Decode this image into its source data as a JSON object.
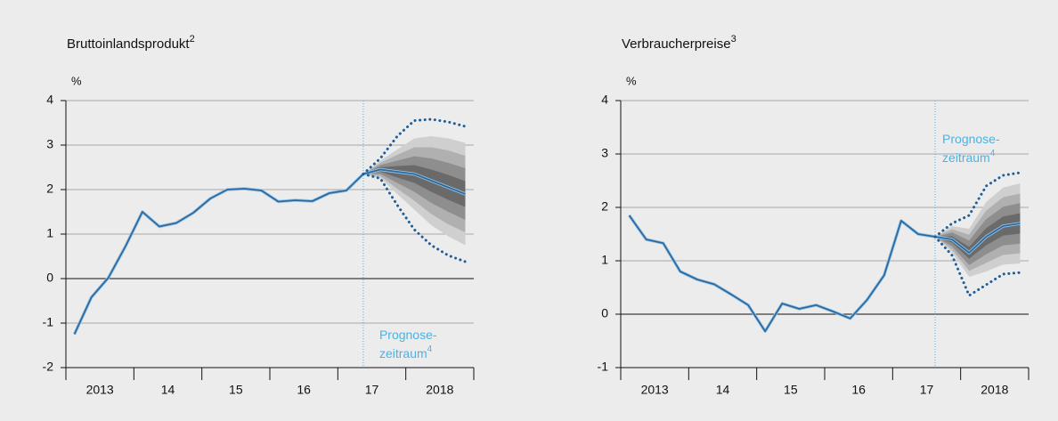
{
  "chart_data": [
    {
      "type": "line",
      "title": "Bruttoinlandsprodukt",
      "title_footnote": "2",
      "y_label": "%",
      "x": [
        2013.125,
        2013.375,
        2013.625,
        2013.875,
        2014.125,
        2014.375,
        2014.625,
        2014.875,
        2015.125,
        2015.375,
        2015.625,
        2015.875,
        2016.125,
        2016.375,
        2016.625,
        2016.875,
        2017.125,
        2017.375,
        2017.625,
        2017.875,
        2018.125,
        2018.375,
        2018.625,
        2018.875
      ],
      "xlim": [
        2013,
        2019
      ],
      "xticks": [
        2013,
        2014,
        2015,
        2016,
        2017,
        2018,
        2019
      ],
      "xtick_labels": [
        {
          "value": 2013.5,
          "label": "2013"
        },
        {
          "value": 2014.5,
          "label": "14"
        },
        {
          "value": 2015.5,
          "label": "15"
        },
        {
          "value": 2016.5,
          "label": "16"
        },
        {
          "value": 2017.5,
          "label": "17"
        },
        {
          "value": 2018.5,
          "label": "2018"
        }
      ],
      "ylim": [
        -2,
        4
      ],
      "yticks": [
        -2,
        -1,
        0,
        1,
        2,
        3,
        4
      ],
      "grid": true,
      "forecast_start": 2017.375,
      "annotation": [
        "Prognose-",
        "zeitraum"
      ],
      "annotation_footnote": "4",
      "annotation_position": "bottom",
      "forecast_color": "#4ab2e4",
      "bands": [
        {
          "color": "#cfcfcf",
          "upper": [
            null,
            null,
            null,
            null,
            null,
            null,
            null,
            null,
            null,
            null,
            null,
            null,
            null,
            null,
            null,
            null,
            null,
            2.35,
            2.65,
            2.9,
            3.15,
            3.2,
            3.15,
            3.05
          ],
          "lower": [
            null,
            null,
            null,
            null,
            null,
            null,
            null,
            null,
            null,
            null,
            null,
            null,
            null,
            null,
            null,
            null,
            null,
            2.35,
            2.25,
            1.9,
            1.55,
            1.2,
            0.95,
            0.75
          ]
        },
        {
          "color": "#b0b0b0",
          "upper": [
            null,
            null,
            null,
            null,
            null,
            null,
            null,
            null,
            null,
            null,
            null,
            null,
            null,
            null,
            null,
            null,
            null,
            2.35,
            2.6,
            2.78,
            2.95,
            2.95,
            2.88,
            2.76
          ],
          "lower": [
            null,
            null,
            null,
            null,
            null,
            null,
            null,
            null,
            null,
            null,
            null,
            null,
            null,
            null,
            null,
            null,
            null,
            2.35,
            2.3,
            2.02,
            1.75,
            1.45,
            1.22,
            1.04
          ]
        },
        {
          "color": "#8e8e8e",
          "upper": [
            null,
            null,
            null,
            null,
            null,
            null,
            null,
            null,
            null,
            null,
            null,
            null,
            null,
            null,
            null,
            null,
            null,
            2.35,
            2.55,
            2.65,
            2.75,
            2.7,
            2.6,
            2.48
          ],
          "lower": [
            null,
            null,
            null,
            null,
            null,
            null,
            null,
            null,
            null,
            null,
            null,
            null,
            null,
            null,
            null,
            null,
            null,
            2.35,
            2.35,
            2.15,
            1.95,
            1.7,
            1.5,
            1.32
          ]
        },
        {
          "color": "#6a6a6a",
          "upper": [
            null,
            null,
            null,
            null,
            null,
            null,
            null,
            null,
            null,
            null,
            null,
            null,
            null,
            null,
            null,
            null,
            null,
            2.35,
            2.5,
            2.53,
            2.55,
            2.45,
            2.33,
            2.19
          ],
          "lower": [
            null,
            null,
            null,
            null,
            null,
            null,
            null,
            null,
            null,
            null,
            null,
            null,
            null,
            null,
            null,
            null,
            null,
            2.35,
            2.4,
            2.27,
            2.15,
            1.95,
            1.77,
            1.61
          ]
        }
      ],
      "series": [
        {
          "color": "#2a6aa3",
          "style": "solid",
          "values": [
            -1.25,
            -0.42,
            0.02,
            0.72,
            1.5,
            1.17,
            1.25,
            1.48,
            1.8,
            2.0,
            2.02,
            1.98,
            1.73,
            1.76,
            1.74,
            1.92,
            1.98,
            2.35,
            null,
            null,
            null,
            null,
            null,
            null
          ]
        },
        {
          "color": "#2a6aa3",
          "style": "solid",
          "values": [
            null,
            null,
            null,
            null,
            null,
            null,
            null,
            null,
            null,
            null,
            null,
            null,
            null,
            null,
            null,
            null,
            null,
            2.35,
            2.45,
            2.4,
            2.35,
            2.2,
            2.05,
            1.9
          ]
        },
        {
          "color": "#1f5e99",
          "style": "dotted",
          "values": [
            null,
            null,
            null,
            null,
            null,
            null,
            null,
            null,
            null,
            null,
            null,
            null,
            null,
            null,
            null,
            null,
            null,
            2.35,
            2.7,
            3.2,
            3.55,
            3.58,
            3.52,
            3.42
          ]
        },
        {
          "color": "#1f5e99",
          "style": "dotted",
          "values": [
            null,
            null,
            null,
            null,
            null,
            null,
            null,
            null,
            null,
            null,
            null,
            null,
            null,
            null,
            null,
            null,
            null,
            2.35,
            2.25,
            1.65,
            1.1,
            0.75,
            0.52,
            0.38
          ]
        }
      ]
    },
    {
      "type": "line",
      "title": "Verbraucherpreise",
      "title_footnote": "3",
      "y_label": "%",
      "x": [
        2013.125,
        2013.375,
        2013.625,
        2013.875,
        2014.125,
        2014.375,
        2014.625,
        2014.875,
        2015.125,
        2015.375,
        2015.625,
        2015.875,
        2016.125,
        2016.375,
        2016.625,
        2016.875,
        2017.125,
        2017.375,
        2017.625,
        2017.875,
        2018.125,
        2018.375,
        2018.625,
        2018.875
      ],
      "xlim": [
        2013,
        2019
      ],
      "xticks": [
        2013,
        2014,
        2015,
        2016,
        2017,
        2018,
        2019
      ],
      "xtick_labels": [
        {
          "value": 2013.5,
          "label": "2013"
        },
        {
          "value": 2014.5,
          "label": "14"
        },
        {
          "value": 2015.5,
          "label": "15"
        },
        {
          "value": 2016.5,
          "label": "16"
        },
        {
          "value": 2017.5,
          "label": "17"
        },
        {
          "value": 2018.5,
          "label": "2018"
        }
      ],
      "ylim": [
        -1,
        4
      ],
      "yticks": [
        -1,
        0,
        1,
        2,
        3,
        4
      ],
      "grid": true,
      "forecast_start": 2017.625,
      "annotation": [
        "Prognose-",
        "zeitraum"
      ],
      "annotation_footnote": "4",
      "annotation_position": "top",
      "forecast_color": "#4ab2e4",
      "bands": [
        {
          "color": "#cfcfcf",
          "upper": [
            null,
            null,
            null,
            null,
            null,
            null,
            null,
            null,
            null,
            null,
            null,
            null,
            null,
            null,
            null,
            null,
            null,
            null,
            1.45,
            1.65,
            1.6,
            2.1,
            2.37,
            2.45
          ],
          "lower": [
            null,
            null,
            null,
            null,
            null,
            null,
            null,
            null,
            null,
            null,
            null,
            null,
            null,
            null,
            null,
            null,
            null,
            null,
            1.45,
            1.15,
            0.7,
            0.8,
            0.93,
            0.95
          ]
        },
        {
          "color": "#b0b0b0",
          "upper": [
            null,
            null,
            null,
            null,
            null,
            null,
            null,
            null,
            null,
            null,
            null,
            null,
            null,
            null,
            null,
            null,
            null,
            null,
            1.45,
            1.59,
            1.49,
            1.94,
            2.19,
            2.26
          ],
          "lower": [
            null,
            null,
            null,
            null,
            null,
            null,
            null,
            null,
            null,
            null,
            null,
            null,
            null,
            null,
            null,
            null,
            null,
            null,
            1.45,
            1.21,
            0.81,
            0.96,
            1.11,
            1.14
          ]
        },
        {
          "color": "#8e8e8e",
          "upper": [
            null,
            null,
            null,
            null,
            null,
            null,
            null,
            null,
            null,
            null,
            null,
            null,
            null,
            null,
            null,
            null,
            null,
            null,
            1.45,
            1.53,
            1.38,
            1.78,
            2.01,
            2.08
          ],
          "lower": [
            null,
            null,
            null,
            null,
            null,
            null,
            null,
            null,
            null,
            null,
            null,
            null,
            null,
            null,
            null,
            null,
            null,
            null,
            1.45,
            1.27,
            0.92,
            1.12,
            1.29,
            1.32
          ]
        },
        {
          "color": "#6a6a6a",
          "upper": [
            null,
            null,
            null,
            null,
            null,
            null,
            null,
            null,
            null,
            null,
            null,
            null,
            null,
            null,
            null,
            null,
            null,
            null,
            1.45,
            1.46,
            1.26,
            1.61,
            1.83,
            1.89
          ],
          "lower": [
            null,
            null,
            null,
            null,
            null,
            null,
            null,
            null,
            null,
            null,
            null,
            null,
            null,
            null,
            null,
            null,
            null,
            null,
            1.45,
            1.34,
            1.04,
            1.29,
            1.47,
            1.51
          ]
        }
      ],
      "series": [
        {
          "color": "#2a6aa3",
          "style": "solid",
          "values": [
            1.85,
            1.4,
            1.33,
            0.8,
            0.65,
            0.56,
            0.37,
            0.17,
            -0.32,
            0.2,
            0.1,
            0.17,
            0.05,
            -0.08,
            0.27,
            0.73,
            1.75,
            1.5,
            1.45,
            null,
            null,
            null,
            null,
            null
          ]
        },
        {
          "color": "#2a6aa3",
          "style": "solid",
          "values": [
            null,
            null,
            null,
            null,
            null,
            null,
            null,
            null,
            null,
            null,
            null,
            null,
            null,
            null,
            null,
            null,
            null,
            null,
            1.45,
            1.4,
            1.15,
            1.45,
            1.65,
            1.7
          ]
        },
        {
          "color": "#1f5e99",
          "style": "dotted",
          "values": [
            null,
            null,
            null,
            null,
            null,
            null,
            null,
            null,
            null,
            null,
            null,
            null,
            null,
            null,
            null,
            null,
            null,
            null,
            1.45,
            1.7,
            1.85,
            2.4,
            2.6,
            2.65
          ]
        },
        {
          "color": "#1f5e99",
          "style": "dotted",
          "values": [
            null,
            null,
            null,
            null,
            null,
            null,
            null,
            null,
            null,
            null,
            null,
            null,
            null,
            null,
            null,
            null,
            null,
            null,
            1.45,
            1.1,
            0.35,
            0.55,
            0.75,
            0.78
          ]
        }
      ]
    }
  ]
}
